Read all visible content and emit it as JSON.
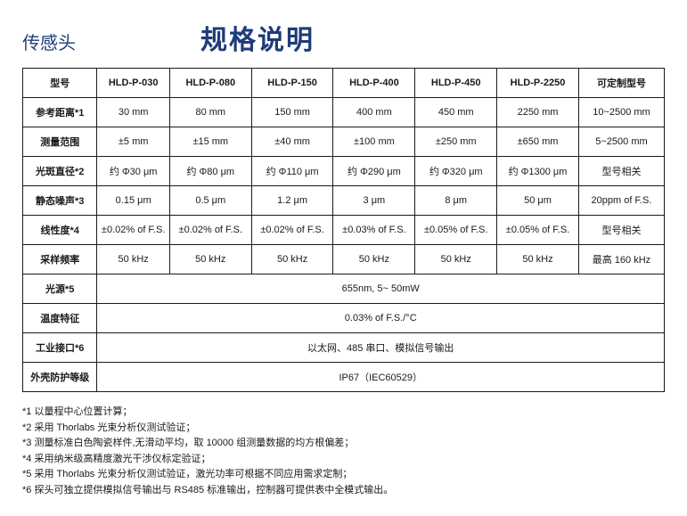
{
  "header": {
    "subtitle": "传感头",
    "title": "规格说明"
  },
  "table": {
    "columns": [
      "型号",
      "HLD-P-030",
      "HLD-P-080",
      "HLD-P-150",
      "HLD-P-400",
      "HLD-P-450",
      "HLD-P-2250",
      "可定制型号"
    ],
    "rows": [
      {
        "label": "参考距离*1",
        "cells": [
          "30 mm",
          "80 mm",
          "150 mm",
          "400 mm",
          "450 mm",
          "2250 mm",
          "10~2500 mm"
        ]
      },
      {
        "label": "测量范围",
        "cells": [
          "±5 mm",
          "±15 mm",
          "±40 mm",
          "±100 mm",
          "±250 mm",
          "±650 mm",
          "5~2500 mm"
        ]
      },
      {
        "label": "光斑直径*2",
        "cells": [
          "约 Φ30 μm",
          "约 Φ80 μm",
          "约 Φ110 μm",
          "约 Φ290 μm",
          "约 Φ320 μm",
          "约 Φ1300 μm",
          "型号相关"
        ]
      },
      {
        "label": "静态噪声*3",
        "cells": [
          "0.15 μm",
          "0.5 μm",
          "1.2 μm",
          "3 μm",
          "8 μm",
          "50 μm",
          "20ppm of F.S."
        ]
      },
      {
        "label": "线性度*4",
        "cells": [
          "±0.02% of F.S.",
          "±0.02% of F.S.",
          "±0.02% of F.S.",
          "±0.03% of F.S.",
          "±0.05% of F.S.",
          "±0.05% of F.S.",
          "型号相关"
        ]
      },
      {
        "label": "采样频率",
        "cells": [
          "50 kHz",
          "50 kHz",
          "50 kHz",
          "50 kHz",
          "50 kHz",
          "50 kHz",
          "最高 160 kHz"
        ]
      }
    ],
    "spanRows": [
      {
        "label": "光源*5",
        "value": "655nm, 5~ 50mW"
      },
      {
        "label": "温度特征",
        "value": "0.03% of F.S./°C"
      },
      {
        "label": "工业接口*6",
        "value": "以太网、485 串口、模拟信号输出"
      },
      {
        "label": "外壳防护等级",
        "value": "IP67（IEC60529）"
      }
    ]
  },
  "notes": [
    "*1 以量程中心位置计算；",
    "*2 采用 Thorlabs 光束分析仪测试验证；",
    "*3 测量标准白色陶瓷样件,无滑动平均，取 10000 组测量数据的均方根偏差；",
    "*4 采用纳米级高精度激光干涉仪标定验证；",
    "*5 采用 Thorlabs 光束分析仪测试验证，激光功率可根据不同应用需求定制；",
    "*6 探头可独立提供模拟信号输出与 RS485 标准输出，控制器可提供表中全模式输出。"
  ]
}
